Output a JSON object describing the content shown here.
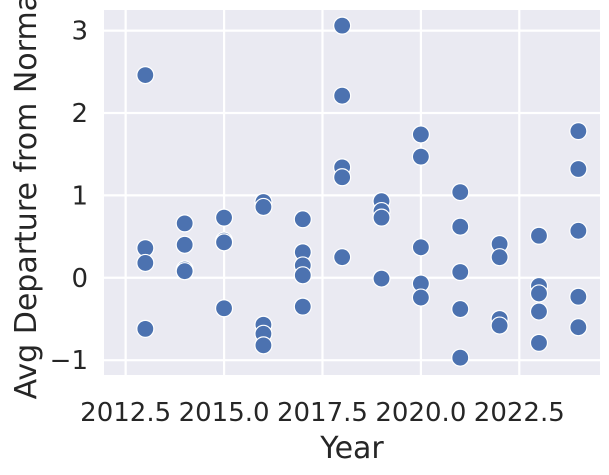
{
  "chart_data": {
    "type": "scatter",
    "title": "",
    "xlabel": "Year",
    "ylabel": "Avg Departure from Normal",
    "xlim": [
      2011.95,
      2024.55
    ],
    "ylim": [
      -1.18,
      3.25
    ],
    "xticks": [
      2012.5,
      2015.0,
      2017.5,
      2020.0,
      2022.5
    ],
    "xtick_labels": [
      "2012.5",
      "2015.0",
      "2017.5",
      "2020.0",
      "2022.5"
    ],
    "yticks": [
      -1,
      0,
      1,
      2,
      3
    ],
    "ytick_labels": [
      "−1",
      "0",
      "1",
      "2",
      "3"
    ],
    "grid": true,
    "colors": {
      "background": "#eaeaf2",
      "grid": "#ffffff",
      "marker": "#4c72b0"
    },
    "series": [
      {
        "points": [
          {
            "x": 2013,
            "y": 2.46
          },
          {
            "x": 2013,
            "y": 0.36
          },
          {
            "x": 2013,
            "y": 0.18
          },
          {
            "x": 2013,
            "y": -0.62
          },
          {
            "x": 2014,
            "y": 0.66
          },
          {
            "x": 2014,
            "y": 0.4
          },
          {
            "x": 2014,
            "y": 0.1
          },
          {
            "x": 2014,
            "y": 0.08
          },
          {
            "x": 2015,
            "y": 0.73
          },
          {
            "x": 2015,
            "y": 0.45
          },
          {
            "x": 2015,
            "y": 0.43
          },
          {
            "x": 2015,
            "y": -0.37
          },
          {
            "x": 2016,
            "y": 0.92
          },
          {
            "x": 2016,
            "y": 0.86
          },
          {
            "x": 2016,
            "y": -0.57
          },
          {
            "x": 2016,
            "y": -0.68
          },
          {
            "x": 2016,
            "y": -0.82
          },
          {
            "x": 2017,
            "y": 0.71
          },
          {
            "x": 2017,
            "y": 0.31
          },
          {
            "x": 2017,
            "y": 0.15
          },
          {
            "x": 2017,
            "y": 0.03
          },
          {
            "x": 2017,
            "y": -0.35
          },
          {
            "x": 2018,
            "y": 3.06
          },
          {
            "x": 2018,
            "y": 2.21
          },
          {
            "x": 2018,
            "y": 1.34
          },
          {
            "x": 2018,
            "y": 1.22
          },
          {
            "x": 2018,
            "y": 0.25
          },
          {
            "x": 2019,
            "y": 0.93
          },
          {
            "x": 2019,
            "y": 0.81
          },
          {
            "x": 2019,
            "y": 0.73
          },
          {
            "x": 2019,
            "y": -0.01
          },
          {
            "x": 2020,
            "y": 1.74
          },
          {
            "x": 2020,
            "y": 1.47
          },
          {
            "x": 2020,
            "y": 0.37
          },
          {
            "x": 2020,
            "y": -0.07
          },
          {
            "x": 2020,
            "y": -0.24
          },
          {
            "x": 2021,
            "y": 1.04
          },
          {
            "x": 2021,
            "y": 0.62
          },
          {
            "x": 2021,
            "y": 0.07
          },
          {
            "x": 2021,
            "y": -0.38
          },
          {
            "x": 2021,
            "y": -0.97
          },
          {
            "x": 2022,
            "y": 0.41
          },
          {
            "x": 2022,
            "y": 0.25
          },
          {
            "x": 2022,
            "y": -0.5
          },
          {
            "x": 2022,
            "y": -0.58
          },
          {
            "x": 2023,
            "y": 0.51
          },
          {
            "x": 2023,
            "y": -0.1
          },
          {
            "x": 2023,
            "y": -0.19
          },
          {
            "x": 2023,
            "y": -0.41
          },
          {
            "x": 2023,
            "y": -0.79
          },
          {
            "x": 2024,
            "y": 1.78
          },
          {
            "x": 2024,
            "y": 1.32
          },
          {
            "x": 2024,
            "y": 0.57
          },
          {
            "x": 2024,
            "y": -0.23
          },
          {
            "x": 2024,
            "y": -0.6
          }
        ]
      }
    ]
  }
}
